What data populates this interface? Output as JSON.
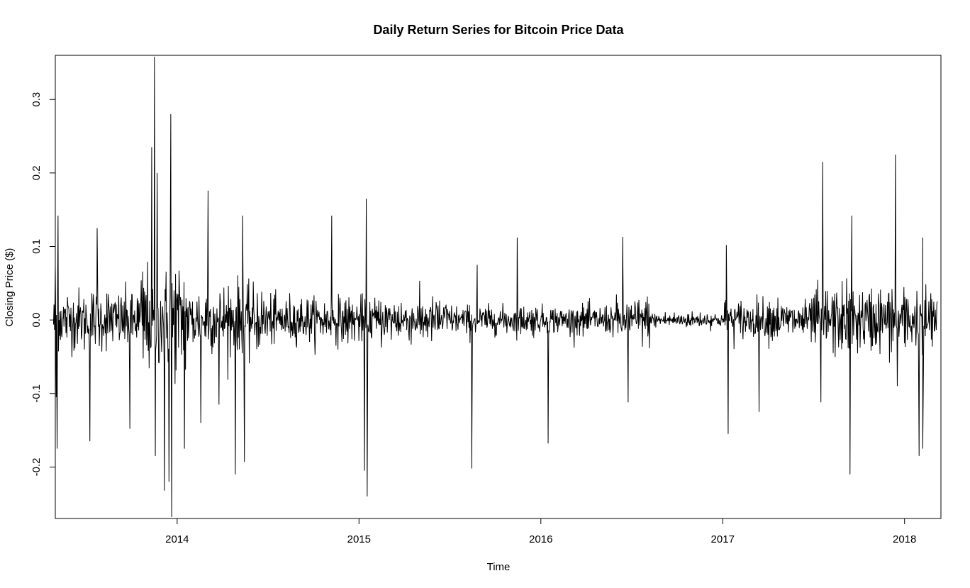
{
  "chart_data": {
    "type": "line",
    "title": "Daily Return Series for Bitcoin Price Data",
    "xlabel": "Time",
    "ylabel": "Closing Price ($)",
    "xlim": [
      2013.33,
      2018.2
    ],
    "ylim": [
      -0.27,
      0.36
    ],
    "x_ticks": [
      2014,
      2015,
      2016,
      2017,
      2018
    ],
    "x_tick_labels": [
      "2014",
      "2015",
      "2016",
      "2017",
      "2018"
    ],
    "y_ticks": [
      -0.2,
      -0.1,
      0.0,
      0.1,
      0.2,
      0.3
    ],
    "y_tick_labels": [
      "-0.2",
      "-0.1",
      "0.0",
      "0.1",
      "0.2",
      "0.3"
    ],
    "grid": false,
    "series_color": "#000000",
    "series": [
      {
        "name": "Daily Return",
        "start": 2013.32,
        "end": 2018.18,
        "key_points": [
          {
            "x": 2013.33,
            "y": 0.075
          },
          {
            "x": 2013.335,
            "y": -0.105
          },
          {
            "x": 2013.34,
            "y": -0.175
          },
          {
            "x": 2013.345,
            "y": 0.142
          },
          {
            "x": 2013.52,
            "y": -0.165
          },
          {
            "x": 2013.56,
            "y": 0.125
          },
          {
            "x": 2013.74,
            "y": -0.148
          },
          {
            "x": 2013.86,
            "y": 0.235
          },
          {
            "x": 2013.875,
            "y": 0.358
          },
          {
            "x": 2013.88,
            "y": -0.185
          },
          {
            "x": 2013.89,
            "y": 0.2
          },
          {
            "x": 2013.93,
            "y": -0.232
          },
          {
            "x": 2013.955,
            "y": -0.22
          },
          {
            "x": 2013.965,
            "y": 0.28
          },
          {
            "x": 2013.97,
            "y": -0.268
          },
          {
            "x": 2014.04,
            "y": -0.175
          },
          {
            "x": 2014.13,
            "y": -0.14
          },
          {
            "x": 2014.17,
            "y": 0.176
          },
          {
            "x": 2014.23,
            "y": -0.115
          },
          {
            "x": 2014.32,
            "y": -0.21
          },
          {
            "x": 2014.36,
            "y": 0.142
          },
          {
            "x": 2014.37,
            "y": -0.193
          },
          {
            "x": 2014.85,
            "y": 0.142
          },
          {
            "x": 2015.03,
            "y": -0.205
          },
          {
            "x": 2015.04,
            "y": 0.165
          },
          {
            "x": 2015.045,
            "y": -0.24
          },
          {
            "x": 2015.62,
            "y": -0.202
          },
          {
            "x": 2015.65,
            "y": 0.075
          },
          {
            "x": 2015.87,
            "y": 0.112
          },
          {
            "x": 2016.04,
            "y": -0.168
          },
          {
            "x": 2016.45,
            "y": 0.113
          },
          {
            "x": 2016.48,
            "y": -0.112
          },
          {
            "x": 2017.02,
            "y": 0.102
          },
          {
            "x": 2017.03,
            "y": -0.155
          },
          {
            "x": 2017.2,
            "y": -0.125
          },
          {
            "x": 2017.55,
            "y": 0.215
          },
          {
            "x": 2017.54,
            "y": -0.112
          },
          {
            "x": 2017.7,
            "y": -0.21
          },
          {
            "x": 2017.71,
            "y": 0.142
          },
          {
            "x": 2017.95,
            "y": 0.225
          },
          {
            "x": 2017.96,
            "y": -0.09
          },
          {
            "x": 2018.08,
            "y": -0.185
          },
          {
            "x": 2018.1,
            "y": 0.112
          },
          {
            "x": 2018.1,
            "y": -0.175
          }
        ],
        "volatility_by_period": [
          {
            "from": 2013.32,
            "to": 2013.8,
            "sd": 0.045
          },
          {
            "from": 2013.8,
            "to": 2014.05,
            "sd": 0.085
          },
          {
            "from": 2014.05,
            "to": 2014.5,
            "sd": 0.05
          },
          {
            "from": 2014.5,
            "to": 2015.5,
            "sd": 0.035
          },
          {
            "from": 2015.5,
            "to": 2016.4,
            "sd": 0.022
          },
          {
            "from": 2016.4,
            "to": 2016.6,
            "sd": 0.035
          },
          {
            "from": 2016.6,
            "to": 2017.0,
            "sd": 0.012
          },
          {
            "from": 2017.0,
            "to": 2017.5,
            "sd": 0.03
          },
          {
            "from": 2017.5,
            "to": 2018.18,
            "sd": 0.05
          }
        ]
      }
    ]
  }
}
